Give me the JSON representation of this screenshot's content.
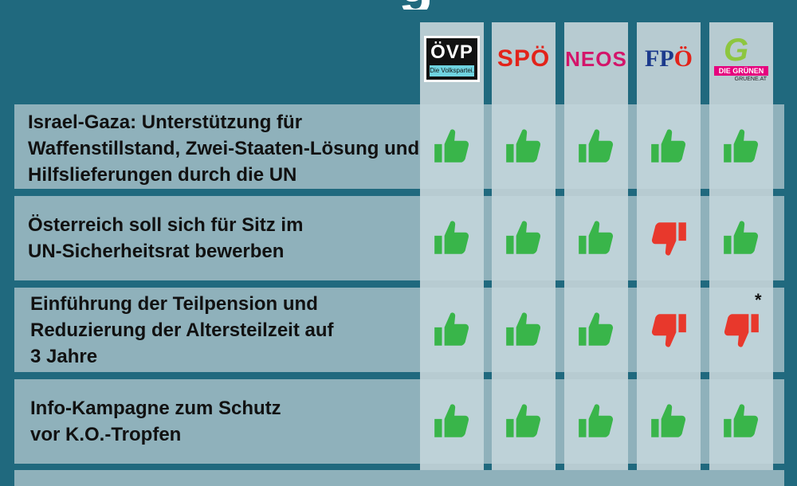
{
  "header": {
    "title_fragment": "g"
  },
  "parties": [
    {
      "key": "ovp",
      "label": "ÖVP",
      "sub": "Die Volkspartei."
    },
    {
      "key": "spo",
      "label": "SPÖ"
    },
    {
      "key": "neos",
      "label": "NEOS"
    },
    {
      "key": "fpo",
      "label_a": "FP",
      "label_b": "Ö"
    },
    {
      "key": "gruene",
      "label": "G",
      "band": "DIE GRÜNEN",
      "url": "GRUENE.AT"
    }
  ],
  "rows": [
    {
      "text": "Israel-Gaza: Unterstützung für Waffenstillstand, Zwei-Staaten-Lösung und Hilfslieferungen durch die UN",
      "votes": [
        "up",
        "up",
        "up",
        "up",
        "up"
      ]
    },
    {
      "text": "Österreich soll sich für Sitz im UN-Sicherheitsrat bewerben",
      "votes": [
        "up",
        "up",
        "up",
        "down",
        "up"
      ]
    },
    {
      "text": "Einführung der Teilpension und Reduzierung der Altersteilzeit auf 3 Jahre",
      "votes": [
        "up",
        "up",
        "up",
        "down",
        "down"
      ],
      "note": "*"
    },
    {
      "text": "Info-Kampagne zum Schutz vor K.O.-Tropfen",
      "votes": [
        "up",
        "up",
        "up",
        "up",
        "up"
      ]
    }
  ],
  "colors": {
    "up": "#39b54a",
    "down": "#e8382c",
    "background": "#20697e"
  }
}
